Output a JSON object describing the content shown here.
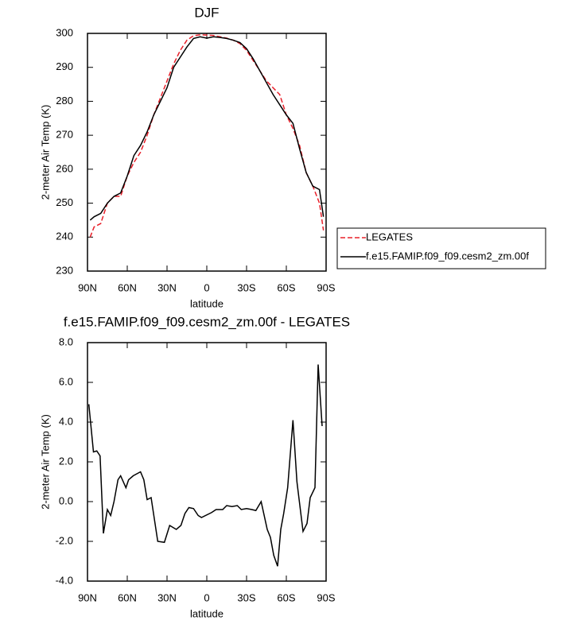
{
  "chart_data": [
    {
      "type": "line",
      "title": "DJF",
      "xlabel": "latitude",
      "ylabel": "2-meter Air Temp (K)",
      "x": [
        88,
        85,
        80,
        75,
        70,
        65,
        60,
        55,
        50,
        45,
        40,
        35,
        30,
        25,
        20,
        15,
        10,
        5,
        0,
        -5,
        -10,
        -15,
        -20,
        -25,
        -30,
        -35,
        -40,
        -45,
        -50,
        -55,
        -60,
        -65,
        -70,
        -75,
        -80,
        -85,
        -88
      ],
      "series": [
        {
          "name": "LEGATES",
          "color": "#e8202a",
          "style": "dashed",
          "values": [
            240,
            243,
            244,
            250,
            252,
            252,
            258,
            262,
            265,
            270,
            276,
            281,
            286,
            291,
            295,
            298,
            299.3,
            299.6,
            299.5,
            299.4,
            299,
            298.6,
            298,
            297,
            295,
            292,
            289,
            286,
            284,
            282,
            276,
            272,
            267,
            259,
            255,
            250,
            242
          ]
        },
        {
          "name": "f.e15.FAMIP.f09_f09.cesm2_zm.00f",
          "color": "#000000",
          "style": "solid",
          "values": [
            245,
            246,
            247,
            250,
            252,
            253,
            258,
            264,
            267,
            271,
            276,
            280,
            284,
            290,
            293,
            296,
            298.5,
            299,
            298.6,
            299,
            298.8,
            298.5,
            298,
            297.3,
            295.5,
            292.5,
            289,
            285.5,
            282,
            279,
            276,
            273.5,
            266,
            259,
            255,
            254,
            246
          ]
        }
      ],
      "xlim": [
        90,
        -90
      ],
      "xticks": [
        {
          "value": 90,
          "label": "90N"
        },
        {
          "value": 60,
          "label": "60N"
        },
        {
          "value": 30,
          "label": "30N"
        },
        0,
        {
          "value": -30,
          "label": "30S"
        },
        {
          "value": -60,
          "label": "60S"
        },
        {
          "value": -90,
          "label": "90S"
        }
      ],
      "ylim": [
        230,
        300
      ],
      "yticks": [
        230,
        240,
        250,
        260,
        270,
        280,
        290,
        300
      ],
      "legend": "right"
    },
    {
      "type": "line",
      "title": "f.e15.FAMIP.f09_f09.cesm2_zm.00f - LEGATES",
      "xlabel": "latitude",
      "ylabel": "2-meter Air Temp (K)",
      "x": [
        89,
        85.5,
        83,
        80.5,
        78,
        75,
        72.5,
        70,
        67,
        65,
        61,
        59,
        55.5,
        50,
        47.5,
        45,
        42,
        37,
        32,
        28,
        25.5,
        23,
        19.5,
        16.5,
        13.5,
        10,
        6.5,
        4,
        -3.6,
        -7,
        -12,
        -15,
        -19,
        -23,
        -26,
        -30,
        -34,
        -37,
        -41,
        -45.6,
        -48,
        -50.5,
        -53.4,
        -55.8,
        -58,
        -61,
        -65,
        -68,
        -72.6,
        -75.6,
        -78,
        -81.6,
        -84,
        -87
      ],
      "series": [
        {
          "color": "#000000",
          "style": "solid",
          "values": [
            4.9,
            2.5,
            2.55,
            2.3,
            -1.6,
            -0.4,
            -0.7,
            0,
            1.1,
            1.3,
            0.7,
            1.1,
            1.3,
            1.5,
            1.1,
            0.1,
            0.2,
            -2.0,
            -2.05,
            -1.2,
            -1.3,
            -1.4,
            -1.2,
            -0.6,
            -0.3,
            -0.35,
            -0.7,
            -0.8,
            -0.55,
            -0.4,
            -0.4,
            -0.2,
            -0.25,
            -0.2,
            -0.4,
            -0.35,
            -0.4,
            -0.45,
            0,
            -1.4,
            -1.8,
            -2.7,
            -3.25,
            -1.4,
            -0.6,
            0.7,
            4.1,
            1.0,
            -1.5,
            -1.1,
            0.2,
            0.7,
            6.9,
            3.8
          ]
        }
      ],
      "xlim": [
        90,
        -90
      ],
      "xticks": [
        {
          "value": 90,
          "label": "90N"
        },
        {
          "value": 60,
          "label": "60N"
        },
        {
          "value": 30,
          "label": "30N"
        },
        0,
        {
          "value": -30,
          "label": "30S"
        },
        {
          "value": -60,
          "label": "60S"
        },
        {
          "value": -90,
          "label": "90S"
        }
      ],
      "ylim": [
        -4,
        8
      ],
      "yticks": [
        {
          "value": -4,
          "label": "-4.0"
        },
        {
          "value": -2,
          "label": "-2.0"
        },
        {
          "value": 0,
          "label": "0.0"
        },
        {
          "value": 2,
          "label": "2.0"
        },
        {
          "value": 4,
          "label": "4.0"
        },
        {
          "value": 6,
          "label": "6.0"
        },
        {
          "value": 8,
          "label": "8.0"
        }
      ]
    }
  ]
}
